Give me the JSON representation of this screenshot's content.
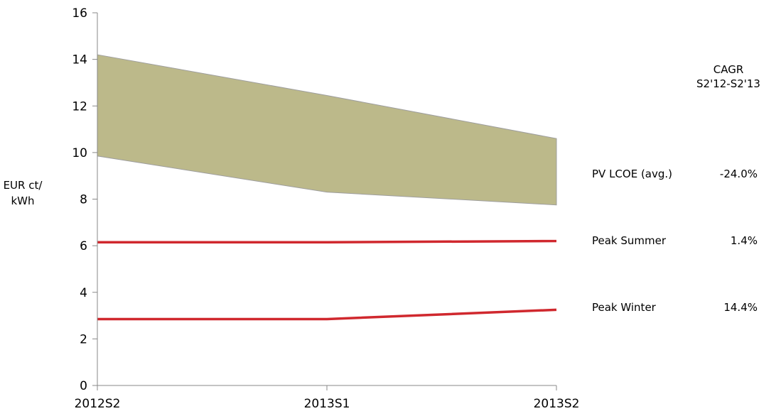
{
  "chart_data": {
    "type": "area",
    "x": [
      "2012S2",
      "2013S1",
      "2013S2"
    ],
    "ylabel_lines": [
      "EUR ct/",
      "kWh"
    ],
    "ylim": [
      0,
      16
    ],
    "yticks": [
      0,
      2,
      4,
      6,
      8,
      10,
      12,
      14,
      16
    ],
    "grid": false,
    "band": {
      "name": "PV LCOE (avg.)",
      "lower": [
        9.85,
        8.3,
        7.75
      ],
      "upper": [
        14.2,
        12.45,
        10.6
      ],
      "color": "#bcb98a",
      "cagr": "-24.0%"
    },
    "series": [
      {
        "name": "Peak Summer",
        "values": [
          6.15,
          6.15,
          6.2
        ],
        "color": "#d0282e",
        "cagr": "1.4%"
      },
      {
        "name": "Peak Winter",
        "values": [
          2.85,
          2.85,
          3.25
        ],
        "color": "#d0282e",
        "cagr": "14.4%"
      }
    ],
    "cagr_header": [
      "CAGR",
      "S2'12-S2'13"
    ]
  }
}
